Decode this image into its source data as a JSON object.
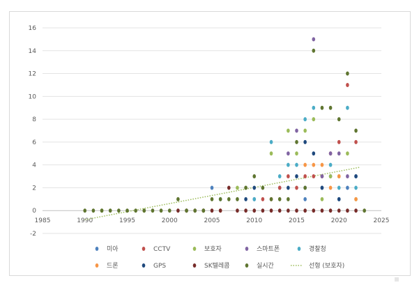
{
  "chart_data": {
    "type": "scatter",
    "title": "",
    "xlabel": "",
    "ylabel": "",
    "xlim": [
      1985,
      2025
    ],
    "ylim": [
      -2,
      16
    ],
    "x_ticks": [
      1985,
      1990,
      1995,
      2000,
      2005,
      2010,
      2015,
      2020,
      2025
    ],
    "y_ticks": [
      -2,
      0,
      2,
      4,
      6,
      8,
      10,
      12,
      14,
      16
    ],
    "grid": "horizontal",
    "legend_position": "bottom",
    "series": [
      {
        "name": "미아",
        "color": "#4e81bd",
        "points": [
          [
            2005,
            2
          ],
          [
            2010,
            1
          ],
          [
            2013,
            2
          ],
          [
            2016,
            1
          ],
          [
            2016,
            2
          ],
          [
            2018,
            2
          ],
          [
            2019,
            3
          ],
          [
            2020,
            1
          ],
          [
            2021,
            2
          ],
          [
            2022,
            3
          ]
        ]
      },
      {
        "name": "CCTV",
        "color": "#c0504d",
        "points": [
          [
            2011,
            1
          ],
          [
            2012,
            1
          ],
          [
            2013,
            2
          ],
          [
            2014,
            3
          ],
          [
            2015,
            2
          ],
          [
            2016,
            3
          ],
          [
            2017,
            3
          ],
          [
            2018,
            3
          ],
          [
            2019,
            5
          ],
          [
            2020,
            6
          ],
          [
            2021,
            11
          ],
          [
            2022,
            6
          ]
        ]
      },
      {
        "name": "보호자",
        "color": "#9bbb59",
        "points": [
          [
            1992,
            0
          ],
          [
            1997,
            0
          ],
          [
            2004,
            0
          ],
          [
            2008,
            2
          ],
          [
            2009,
            2
          ],
          [
            2012,
            5
          ],
          [
            2014,
            7
          ],
          [
            2015,
            5
          ],
          [
            2016,
            7
          ],
          [
            2017,
            8
          ],
          [
            2018,
            1
          ],
          [
            2019,
            3
          ],
          [
            2020,
            3
          ],
          [
            2021,
            5
          ],
          [
            2022,
            1
          ]
        ]
      },
      {
        "name": "스마트폰",
        "color": "#8064a2",
        "points": [
          [
            2014,
            5
          ],
          [
            2015,
            7
          ],
          [
            2017,
            15
          ],
          [
            2018,
            3
          ],
          [
            2019,
            5
          ],
          [
            2020,
            5
          ],
          [
            2021,
            3
          ]
        ]
      },
      {
        "name": "경찰청",
        "color": "#4bacc6",
        "points": [
          [
            2006,
            1
          ],
          [
            2010,
            1
          ],
          [
            2012,
            6
          ],
          [
            2013,
            3
          ],
          [
            2014,
            4
          ],
          [
            2015,
            4
          ],
          [
            2016,
            8
          ],
          [
            2017,
            9
          ],
          [
            2019,
            4
          ],
          [
            2020,
            2
          ],
          [
            2021,
            9
          ],
          [
            2022,
            2
          ]
        ]
      },
      {
        "name": "드론",
        "color": "#f79646",
        "points": [
          [
            2006,
            0
          ],
          [
            2016,
            4
          ],
          [
            2017,
            4
          ],
          [
            2018,
            4
          ],
          [
            2019,
            2
          ],
          [
            2020,
            3
          ],
          [
            2022,
            1
          ]
        ]
      },
      {
        "name": "GPS",
        "color": "#1f497d",
        "points": [
          [
            2009,
            1
          ],
          [
            2010,
            2
          ],
          [
            2014,
            2
          ],
          [
            2015,
            3
          ],
          [
            2016,
            6
          ],
          [
            2017,
            5
          ],
          [
            2018,
            2
          ],
          [
            2020,
            1
          ],
          [
            2022,
            3
          ]
        ]
      },
      {
        "name": "SK텔레콤",
        "color": "#772c2a",
        "points": [
          [
            2001,
            0
          ],
          [
            2002,
            0
          ],
          [
            2003,
            0
          ],
          [
            2004,
            0
          ],
          [
            2005,
            0
          ],
          [
            2006,
            0
          ],
          [
            2007,
            2
          ],
          [
            2008,
            0
          ],
          [
            2009,
            0
          ],
          [
            2010,
            0
          ],
          [
            2011,
            0
          ],
          [
            2012,
            0
          ],
          [
            2013,
            0
          ],
          [
            2014,
            0
          ],
          [
            2015,
            0
          ],
          [
            2016,
            0
          ],
          [
            2017,
            0
          ],
          [
            2018,
            0
          ],
          [
            2019,
            0
          ],
          [
            2020,
            0
          ],
          [
            2021,
            0
          ],
          [
            2022,
            0
          ]
        ]
      },
      {
        "name": "실시간",
        "color": "#5f7530",
        "points": [
          [
            1990,
            0
          ],
          [
            1991,
            0
          ],
          [
            1992,
            0
          ],
          [
            1993,
            0
          ],
          [
            1994,
            0
          ],
          [
            1995,
            0
          ],
          [
            1996,
            0
          ],
          [
            1997,
            0
          ],
          [
            1998,
            0
          ],
          [
            1999,
            0
          ],
          [
            2000,
            0
          ],
          [
            2001,
            1
          ],
          [
            2002,
            0
          ],
          [
            2003,
            0
          ],
          [
            2004,
            0
          ],
          [
            2005,
            1
          ],
          [
            2006,
            1
          ],
          [
            2007,
            1
          ],
          [
            2008,
            1
          ],
          [
            2009,
            2
          ],
          [
            2010,
            3
          ],
          [
            2011,
            2
          ],
          [
            2012,
            1
          ],
          [
            2013,
            1
          ],
          [
            2014,
            1
          ],
          [
            2015,
            6
          ],
          [
            2016,
            2
          ],
          [
            2017,
            14
          ],
          [
            2018,
            9
          ],
          [
            2019,
            9
          ],
          [
            2020,
            8
          ],
          [
            2021,
            12
          ],
          [
            2022,
            7
          ],
          [
            2023,
            0
          ]
        ]
      }
    ],
    "trendline": {
      "name": "선형 (보호자)",
      "color": "#9bbb59",
      "x": [
        1990,
        2022.5
      ],
      "y": [
        -0.8,
        3.8
      ]
    }
  }
}
